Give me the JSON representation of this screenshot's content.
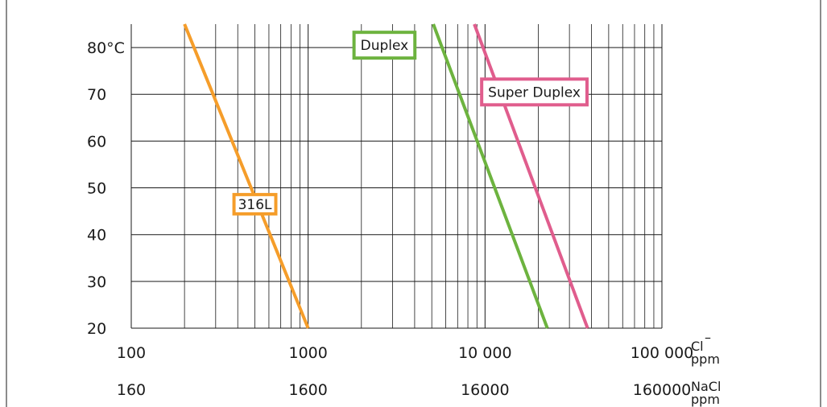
{
  "chart_data": {
    "type": "line",
    "title": "",
    "x_scale": "log",
    "xlim": [
      100,
      100000
    ],
    "ylim": [
      20,
      85
    ],
    "grid": true,
    "y_ticks": [
      {
        "value": 80,
        "label": "80°C"
      },
      {
        "value": 70,
        "label": "70"
      },
      {
        "value": 60,
        "label": "60"
      },
      {
        "value": 50,
        "label": "50"
      },
      {
        "value": 40,
        "label": "40"
      },
      {
        "value": 30,
        "label": "30"
      },
      {
        "value": 20,
        "label": "20"
      }
    ],
    "x_ticks": [
      {
        "value": 100,
        "label": "100"
      },
      {
        "value": 1000,
        "label": "1000"
      },
      {
        "value": 10000,
        "label": "10 000"
      },
      {
        "value": 100000,
        "label": "100 000"
      }
    ],
    "x_unit": {
      "line1": "Cl",
      "superscript": "–",
      "line2": "ppm"
    },
    "secondary_x": {
      "ticks": [
        {
          "value": 100,
          "label": "160"
        },
        {
          "value": 1000,
          "label": "1600"
        },
        {
          "value": 10000,
          "label": "16000"
        },
        {
          "value": 100000,
          "label": "160000"
        }
      ],
      "unit": {
        "line1": "NaCl",
        "line2": "ppm"
      }
    },
    "series": [
      {
        "name": "316L",
        "color": "#f59d2a",
        "x": [
          200,
          1000
        ],
        "y": [
          85,
          20
        ],
        "label_at": {
          "x": 500,
          "y": 46.5
        }
      },
      {
        "name": "Duplex",
        "color": "#6db33f",
        "x": [
          5100,
          22500
        ],
        "y": [
          85,
          20
        ],
        "label_at": {
          "x": 2700,
          "y": 80.5
        }
      },
      {
        "name": "Super Duplex",
        "color": "#e05d8d",
        "x": [
          8700,
          38000
        ],
        "y": [
          85,
          20
        ],
        "label_at": {
          "x": 19000,
          "y": 70.5
        }
      }
    ]
  }
}
